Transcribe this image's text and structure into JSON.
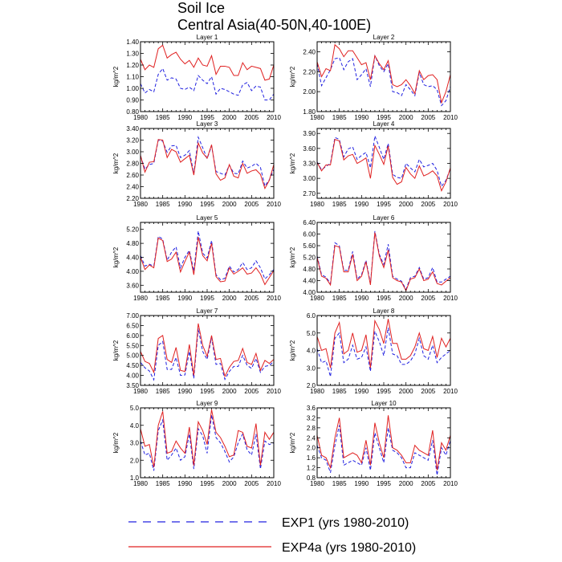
{
  "figure": {
    "title_line1": "Soil Ice",
    "title_line2": "Central Asia(40-50N,40-100E)"
  },
  "legend": {
    "entries": [
      {
        "label": "EXP1 (yrs 1980-2010)",
        "style": "dashed",
        "color": "#2020e0"
      },
      {
        "label": "EXP4a (yrs 1980-2010)",
        "style": "solid",
        "color": "#e02020"
      }
    ]
  },
  "colors": {
    "exp1": "#2020e0",
    "exp4a": "#e02020"
  },
  "chart_data": [
    {
      "type": "line",
      "title": "Layer 1",
      "ylabel": "kg/m^2",
      "xlim": [
        1980,
        2010
      ],
      "ylim": [
        0.8,
        1.4
      ],
      "yticks": [
        0.8,
        0.9,
        1.0,
        1.1,
        1.2,
        1.3,
        1.4
      ],
      "yfmt": 2,
      "xticks": [
        1980,
        1985,
        1990,
        1995,
        2000,
        2005,
        2010
      ],
      "series": [
        {
          "name": "EXP1 (yrs 1980-2010)",
          "values": [
            1.04,
            0.96,
            0.99,
            0.97,
            1.12,
            1.17,
            1.07,
            1.09,
            1.08,
            1.0,
            0.99,
            1.01,
            0.98,
            1.11,
            1.07,
            1.04,
            1.1,
            0.95,
            1.0,
            0.99,
            0.97,
            0.95,
            0.94,
            1.03,
            1.05,
            0.98,
            1.02,
            1.01,
            0.9,
            0.9,
            0.95
          ]
        },
        {
          "name": "EXP4a (yrs 1980-2010)",
          "values": [
            1.25,
            1.16,
            1.2,
            1.18,
            1.34,
            1.37,
            1.26,
            1.29,
            1.31,
            1.25,
            1.21,
            1.24,
            1.18,
            1.26,
            1.2,
            1.19,
            1.28,
            1.12,
            1.19,
            1.19,
            1.18,
            1.11,
            1.11,
            1.22,
            1.16,
            1.19,
            1.18,
            1.17,
            1.07,
            1.08,
            1.2
          ]
        }
      ]
    },
    {
      "type": "line",
      "title": "Layer 2",
      "ylabel": "kg/m^2",
      "xlim": [
        1980,
        2010
      ],
      "ylim": [
        1.8,
        2.5
      ],
      "yticks": [
        1.8,
        2.0,
        2.2,
        2.4
      ],
      "yfmt": 2,
      "xticks": [
        1980,
        1985,
        1990,
        1995,
        2000,
        2005,
        2010
      ],
      "series": [
        {
          "name": "EXP1 (yrs 1980-2010)",
          "values": [
            2.28,
            2.06,
            2.14,
            2.22,
            2.33,
            2.34,
            2.22,
            2.3,
            2.33,
            2.12,
            2.17,
            2.23,
            2.05,
            2.36,
            2.26,
            2.2,
            2.28,
            2.0,
            1.99,
            1.96,
            2.07,
            2.02,
            1.96,
            2.19,
            2.07,
            2.05,
            2.06,
            2.02,
            1.86,
            1.91,
            2.05
          ]
        },
        {
          "name": "EXP4a (yrs 1980-2010)",
          "values": [
            2.3,
            2.15,
            2.23,
            2.21,
            2.47,
            2.43,
            2.35,
            2.41,
            2.41,
            2.34,
            2.27,
            2.29,
            2.12,
            2.36,
            2.28,
            2.22,
            2.31,
            2.07,
            2.05,
            2.07,
            2.12,
            2.06,
            1.98,
            2.21,
            2.12,
            2.16,
            2.17,
            2.12,
            1.89,
            2.0,
            2.17
          ]
        }
      ]
    },
    {
      "type": "line",
      "title": "Layer 3",
      "ylabel": "kg/m^2",
      "xlim": [
        1980,
        2010
      ],
      "ylim": [
        2.2,
        3.4
      ],
      "yticks": [
        2.2,
        2.4,
        2.6,
        2.8,
        3.0,
        3.2,
        3.4
      ],
      "yfmt": 2,
      "xticks": [
        1980,
        1985,
        1990,
        1995,
        2000,
        2005,
        2010
      ],
      "series": [
        {
          "name": "EXP1 (yrs 1980-2010)",
          "values": [
            2.93,
            2.7,
            2.78,
            2.8,
            3.2,
            3.18,
            2.99,
            3.1,
            3.11,
            2.9,
            2.94,
            3.02,
            2.62,
            3.25,
            3.07,
            2.88,
            3.1,
            2.66,
            2.63,
            2.6,
            2.77,
            2.63,
            2.62,
            2.84,
            2.72,
            2.75,
            2.8,
            2.73,
            2.41,
            2.52,
            2.7
          ]
        },
        {
          "name": "EXP4a (yrs 1980-2010)",
          "values": [
            2.94,
            2.65,
            2.82,
            2.83,
            3.21,
            3.2,
            2.9,
            3.04,
            3.0,
            2.82,
            2.88,
            2.94,
            2.6,
            3.15,
            2.98,
            2.89,
            3.12,
            2.62,
            2.51,
            2.55,
            2.78,
            2.58,
            2.55,
            2.8,
            2.63,
            2.67,
            2.69,
            2.61,
            2.37,
            2.51,
            2.78
          ]
        }
      ]
    },
    {
      "type": "line",
      "title": "Layer 4",
      "ylabel": "kg/m^2",
      "xlim": [
        1980,
        2010
      ],
      "ylim": [
        2.6,
        4.0
      ],
      "yticks": [
        2.7,
        3.0,
        3.3,
        3.6,
        3.9
      ],
      "yfmt": 2,
      "xticks": [
        1980,
        1985,
        1990,
        1995,
        2000,
        2005,
        2010
      ],
      "series": [
        {
          "name": "EXP1 (yrs 1980-2010)",
          "values": [
            3.33,
            3.17,
            3.24,
            3.3,
            3.82,
            3.78,
            3.43,
            3.59,
            3.63,
            3.38,
            3.46,
            3.52,
            3.21,
            3.85,
            3.62,
            3.38,
            3.7,
            3.08,
            3.02,
            3.0,
            3.3,
            3.21,
            3.13,
            3.38,
            3.23,
            3.26,
            3.3,
            3.16,
            2.84,
            2.96,
            3.2
          ]
        },
        {
          "name": "EXP4a (yrs 1980-2010)",
          "values": [
            3.32,
            3.15,
            3.27,
            3.27,
            3.78,
            3.75,
            3.37,
            3.45,
            3.48,
            3.3,
            3.35,
            3.41,
            3.0,
            3.66,
            3.48,
            3.28,
            3.65,
            3.02,
            2.88,
            2.93,
            3.22,
            3.09,
            3.0,
            3.25,
            3.05,
            3.09,
            3.15,
            3.05,
            2.75,
            2.93,
            3.21
          ]
        }
      ]
    },
    {
      "type": "line",
      "title": "Layer 5",
      "ylabel": "kg/m^2",
      "xlim": [
        1980,
        2010
      ],
      "ylim": [
        3.4,
        5.4
      ],
      "yticks": [
        3.6,
        4.0,
        4.4,
        4.8,
        5.2
      ],
      "yfmt": 2,
      "xticks": [
        1980,
        1985,
        1990,
        1995,
        2000,
        2005,
        2010
      ],
      "series": [
        {
          "name": "EXP1 (yrs 1980-2010)",
          "values": [
            4.45,
            4.15,
            4.2,
            4.15,
            5.0,
            4.92,
            4.32,
            4.55,
            4.7,
            4.1,
            4.4,
            4.6,
            4.0,
            5.15,
            4.52,
            4.38,
            4.88,
            3.9,
            3.76,
            3.8,
            4.15,
            3.98,
            4.05,
            4.25,
            4.05,
            4.1,
            4.3,
            4.1,
            3.78,
            3.9,
            4.05
          ]
        },
        {
          "name": "EXP4a (yrs 1980-2010)",
          "values": [
            4.4,
            4.05,
            4.18,
            4.1,
            4.95,
            4.88,
            4.28,
            4.35,
            4.55,
            3.98,
            4.28,
            4.55,
            3.9,
            4.98,
            4.45,
            4.3,
            4.8,
            3.85,
            3.7,
            3.72,
            4.1,
            3.92,
            4.0,
            4.1,
            3.92,
            3.95,
            4.1,
            3.92,
            3.62,
            3.82,
            4.02
          ]
        }
      ]
    },
    {
      "type": "line",
      "title": "Layer 6",
      "ylabel": "kg/m^2",
      "xlim": [
        1980,
        2010
      ],
      "ylim": [
        4.0,
        6.4
      ],
      "yticks": [
        4.0,
        4.4,
        4.8,
        5.2,
        5.6,
        6.0,
        6.4
      ],
      "yfmt": 2,
      "xticks": [
        1980,
        1985,
        1990,
        1995,
        2000,
        2005,
        2010
      ],
      "series": [
        {
          "name": "EXP1 (yrs 1980-2010)",
          "values": [
            5.25,
            4.6,
            4.52,
            4.3,
            5.7,
            5.6,
            4.75,
            4.75,
            5.4,
            4.45,
            4.6,
            5.1,
            4.3,
            6.1,
            5.3,
            4.95,
            5.65,
            4.55,
            4.45,
            4.38,
            4.1,
            4.5,
            4.55,
            4.85,
            4.45,
            4.5,
            4.85,
            4.35,
            4.35,
            4.45,
            4.55
          ]
        },
        {
          "name": "EXP4a (yrs 1980-2010)",
          "values": [
            5.2,
            4.55,
            4.48,
            4.25,
            5.6,
            5.55,
            4.7,
            4.7,
            5.3,
            4.4,
            4.55,
            5.05,
            4.25,
            6.05,
            5.25,
            4.85,
            5.45,
            4.5,
            4.4,
            4.35,
            4.05,
            4.45,
            4.5,
            4.8,
            4.4,
            4.45,
            4.7,
            4.3,
            4.25,
            4.38,
            4.5
          ]
        }
      ]
    },
    {
      "type": "line",
      "title": "Layer 7",
      "ylabel": "kg/m^2",
      "xlim": [
        1980,
        2010
      ],
      "ylim": [
        3.5,
        7.0
      ],
      "yticks": [
        3.5,
        4.0,
        4.5,
        5.0,
        5.5,
        6.0,
        6.5,
        7.0
      ],
      "yfmt": 2,
      "xticks": [
        1980,
        1985,
        1990,
        1995,
        2000,
        2005,
        2010
      ],
      "series": [
        {
          "name": "EXP1 (yrs 1980-2010)",
          "values": [
            4.65,
            4.38,
            4.22,
            3.78,
            5.5,
            5.7,
            4.3,
            4.3,
            4.9,
            4.0,
            4.02,
            5.2,
            3.85,
            6.35,
            5.2,
            4.8,
            5.9,
            4.55,
            4.6,
            3.8,
            4.2,
            4.45,
            4.45,
            5.0,
            4.5,
            4.35,
            4.85,
            4.15,
            4.45,
            4.5,
            4.7
          ]
        },
        {
          "name": "EXP4a (yrs 1980-2010)",
          "values": [
            5.2,
            4.7,
            4.6,
            4.15,
            5.85,
            6.0,
            4.8,
            4.65,
            5.4,
            4.25,
            4.2,
            5.55,
            4.0,
            6.6,
            5.5,
            4.95,
            6.0,
            4.8,
            4.85,
            3.95,
            4.4,
            4.7,
            4.75,
            5.35,
            4.65,
            4.55,
            5.1,
            4.25,
            4.75,
            4.6,
            4.8
          ]
        }
      ]
    },
    {
      "type": "line",
      "title": "Layer 8",
      "ylabel": "kg/m^2",
      "xlim": [
        1980,
        2010
      ],
      "ylim": [
        2.0,
        6.0
      ],
      "yticks": [
        2.0,
        3.0,
        4.0,
        5.0,
        6.0
      ],
      "yfmt": 1,
      "xticks": [
        1980,
        1985,
        1990,
        1995,
        2000,
        2005,
        2010
      ],
      "series": [
        {
          "name": "EXP1 (yrs 1980-2010)",
          "values": [
            4.1,
            3.3,
            3.4,
            2.5,
            4.7,
            5.0,
            3.3,
            3.5,
            4.3,
            3.5,
            3.6,
            4.2,
            2.8,
            5.1,
            4.5,
            3.7,
            5.3,
            3.8,
            3.7,
            3.2,
            3.2,
            3.4,
            3.8,
            4.7,
            3.7,
            3.5,
            4.3,
            3.3,
            3.6,
            3.8,
            4.0
          ]
        },
        {
          "name": "EXP4a (yrs 1980-2010)",
          "values": [
            4.8,
            4.0,
            4.1,
            3.0,
            5.0,
            5.6,
            3.8,
            4.0,
            5.0,
            3.9,
            4.0,
            4.9,
            3.0,
            5.7,
            5.2,
            4.4,
            5.8,
            4.4,
            4.4,
            3.5,
            3.5,
            3.7,
            4.2,
            5.0,
            4.1,
            4.0,
            4.8,
            3.6,
            4.7,
            4.2,
            4.7
          ]
        }
      ]
    },
    {
      "type": "line",
      "title": "Layer 9",
      "ylabel": "kg/m^2",
      "xlim": [
        1980,
        2010
      ],
      "ylim": [
        1.0,
        5.0
      ],
      "yticks": [
        1.0,
        2.0,
        3.0,
        4.0,
        5.0
      ],
      "yfmt": 1,
      "xticks": [
        1980,
        1985,
        1990,
        1995,
        2000,
        2005,
        2010
      ],
      "series": [
        {
          "name": "EXP1 (yrs 1980-2010)",
          "values": [
            3.1,
            2.3,
            2.4,
            1.4,
            3.7,
            4.3,
            2.0,
            2.3,
            2.7,
            2.0,
            2.2,
            3.5,
            1.5,
            3.8,
            3.4,
            2.4,
            4.6,
            3.3,
            3.0,
            2.5,
            1.9,
            2.2,
            3.0,
            3.5,
            2.6,
            2.3,
            3.5,
            1.5,
            3.1,
            2.9,
            3.0
          ]
        },
        {
          "name": "EXP4a (yrs 1980-2010)",
          "values": [
            3.8,
            2.8,
            2.9,
            1.6,
            4.0,
            4.8,
            2.4,
            2.5,
            3.1,
            2.7,
            2.4,
            3.9,
            1.7,
            4.2,
            3.7,
            2.9,
            4.9,
            3.6,
            3.3,
            2.8,
            2.2,
            2.3,
            3.7,
            3.6,
            2.8,
            2.7,
            4.1,
            1.7,
            3.6,
            3.2,
            3.6
          ]
        }
      ]
    },
    {
      "type": "line",
      "title": "Layer 10",
      "ylabel": "kg/m^2",
      "xlim": [
        1980,
        2010
      ],
      "ylim": [
        0.8,
        3.6
      ],
      "yticks": [
        0.8,
        1.2,
        1.6,
        2.0,
        2.4,
        2.8,
        3.2,
        3.6
      ],
      "yfmt": 1,
      "xticks": [
        1980,
        1985,
        1990,
        1995,
        2000,
        2005,
        2010
      ],
      "series": [
        {
          "name": "EXP1 (yrs 1980-2010)",
          "values": [
            2.1,
            1.6,
            1.5,
            1.0,
            2.1,
            2.9,
            1.3,
            1.4,
            1.5,
            1.4,
            1.3,
            2.0,
            1.1,
            2.6,
            2.0,
            1.4,
            2.8,
            1.9,
            1.8,
            1.6,
            1.2,
            1.2,
            1.8,
            1.7,
            1.6,
            1.5,
            2.3,
            0.9,
            2.0,
            1.7,
            2.3
          ]
        },
        {
          "name": "EXP4a (yrs 1980-2010)",
          "values": [
            2.5,
            1.7,
            1.6,
            1.2,
            2.4,
            3.2,
            1.6,
            1.7,
            1.8,
            1.7,
            1.4,
            2.3,
            1.3,
            3.0,
            2.2,
            1.6,
            3.3,
            2.0,
            1.9,
            1.7,
            1.4,
            1.4,
            2.1,
            1.9,
            1.8,
            1.7,
            2.7,
            1.1,
            2.2,
            1.9,
            2.5
          ]
        }
      ]
    }
  ]
}
